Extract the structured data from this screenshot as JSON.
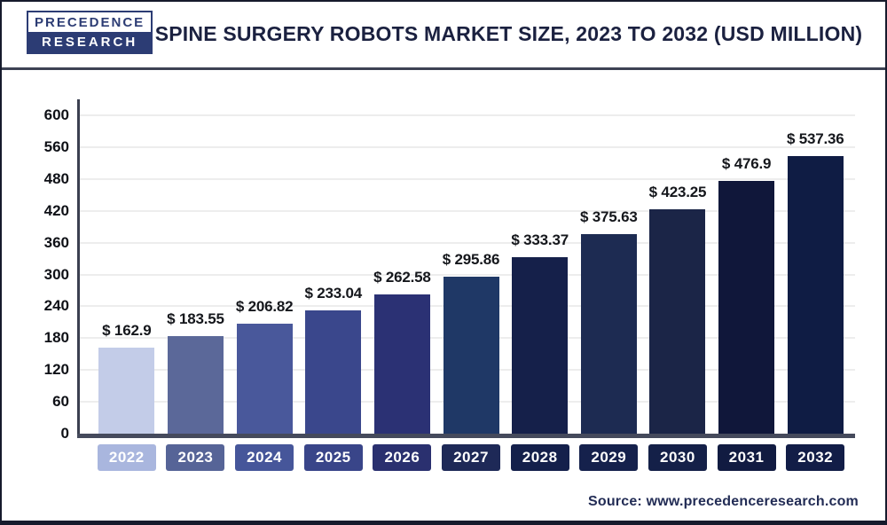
{
  "header": {
    "logo_line1": "PRECEDENCE",
    "logo_line2": "RESEARCH",
    "title": "SPINE SURGERY ROBOTS MARKET SIZE, 2023 TO 2032 (USD MILLION)"
  },
  "chart_data": {
    "type": "bar",
    "title": "Spine Surgery Robots Market Size, 2023 to 2032 (USD Million)",
    "unit": "USD Million",
    "categories": [
      "2022",
      "2023",
      "2024",
      "2025",
      "2026",
      "2027",
      "2028",
      "2029",
      "2030",
      "2031",
      "2032"
    ],
    "values": [
      162.9,
      183.55,
      206.82,
      233.04,
      262.58,
      295.86,
      333.37,
      375.63,
      423.25,
      476.9,
      537.36
    ],
    "value_labels": [
      "$ 162.9",
      "$ 183.55",
      "$ 206.82",
      "$ 233.04",
      "$ 262.58",
      "$ 295.86",
      "$ 333.37",
      "$ 375.63",
      "$ 423.25",
      "$ 476.9",
      "$ 537.36"
    ],
    "bar_colors": [
      "#c3cce8",
      "#5b6899",
      "#49589b",
      "#3a478c",
      "#2b3174",
      "#1f3866",
      "#15204a",
      "#1d2b52",
      "#1b2547",
      "#10173a",
      "#0f1c44"
    ],
    "pill_colors": [
      "#a9b6de",
      "#566497",
      "#46569a",
      "#394589",
      "#2a306f",
      "#1e2957",
      "#14204b",
      "#15214c",
      "#142048",
      "#111b41",
      "#121d47"
    ],
    "y_ticks": [
      0,
      60,
      120,
      180,
      240,
      300,
      360,
      420,
      480,
      560,
      600
    ],
    "xlabel": "",
    "ylabel": "",
    "grid": true,
    "legend": "none"
  },
  "footer": {
    "source": "Source: www.precedenceresearch.com"
  },
  "colors": {
    "axis": "#454a5c",
    "grid": "#ededed",
    "title_text": "#1b2140",
    "logo_navy": "#2c3c74",
    "source_text": "#222c55",
    "frame_border": "#161a2c"
  }
}
